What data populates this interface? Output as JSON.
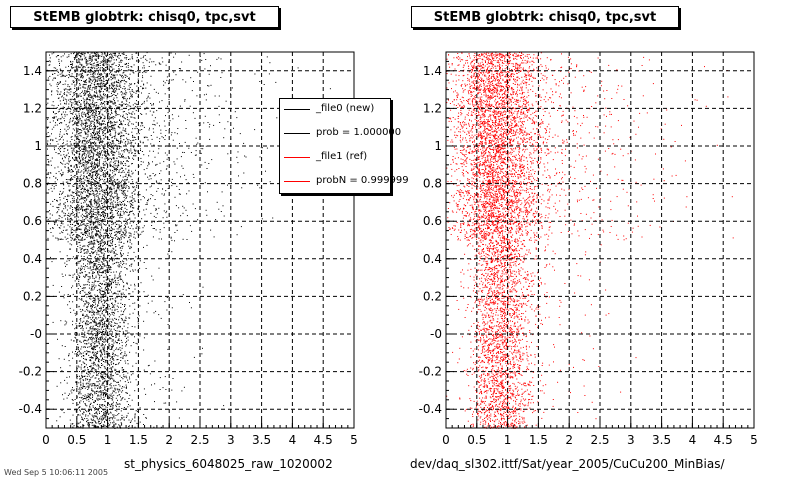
{
  "colors": {
    "file0": "#000000",
    "file1": "#ff0000",
    "grid": "#000000"
  },
  "left_panel": {
    "title": "StEMB globtrk: chisq0, tpc,svt",
    "bottom_label": "st_physics_6048025_raw_1020002"
  },
  "right_panel": {
    "title": "StEMB globtrk: chisq0, tpc,svt",
    "bottom_label": "dev/daq_sl302.ittf/Sat/year_2005/CuCu200_MinBias/"
  },
  "legend": {
    "entries": [
      {
        "label": "_file0 (new)",
        "color": "#000000"
      },
      {
        "label": "prob = 1.000000",
        "color": "#000000"
      },
      {
        "label": "_file1 (ref)",
        "color": "#ff0000"
      },
      {
        "label": "probN = 0.999999",
        "color": "#ff0000"
      }
    ]
  },
  "stamp": "Wed Sep  5 10:06:11 2005",
  "chart_data": [
    {
      "type": "scatter",
      "title": "StEMB globtrk: chisq0, tpc,svt",
      "xlabel": "",
      "ylabel": "",
      "xlim": [
        0,
        5
      ],
      "ylim": [
        -0.5,
        1.5
      ],
      "x_ticks": [
        "0",
        "0.5",
        "1",
        "1.5",
        "2",
        "2.5",
        "3",
        "3.5",
        "4",
        "4.5",
        "5"
      ],
      "y_ticks": [
        "-0.4",
        "-0.2",
        "-0",
        "0.2",
        "0.4",
        "0.6",
        "0.8",
        "1",
        "1.2",
        "1.4"
      ],
      "grid": true,
      "series": [
        {
          "name": "_file0 (new)",
          "color": "#000000"
        }
      ]
    },
    {
      "type": "scatter",
      "title": "StEMB globtrk: chisq0, tpc,svt",
      "xlabel": "",
      "ylabel": "",
      "xlim": [
        0,
        5
      ],
      "ylim": [
        -0.5,
        1.5
      ],
      "x_ticks": [
        "0",
        "0.5",
        "1",
        "1.5",
        "2",
        "2.5",
        "3",
        "3.5",
        "4",
        "4.5",
        "5"
      ],
      "y_ticks": [
        "-0.4",
        "-0.2",
        "-0",
        "0.2",
        "0.4",
        "0.6",
        "0.8",
        "1",
        "1.2",
        "1.4"
      ],
      "grid": true,
      "series": [
        {
          "name": "_file1 (ref)",
          "color": "#ff0000"
        }
      ]
    }
  ]
}
